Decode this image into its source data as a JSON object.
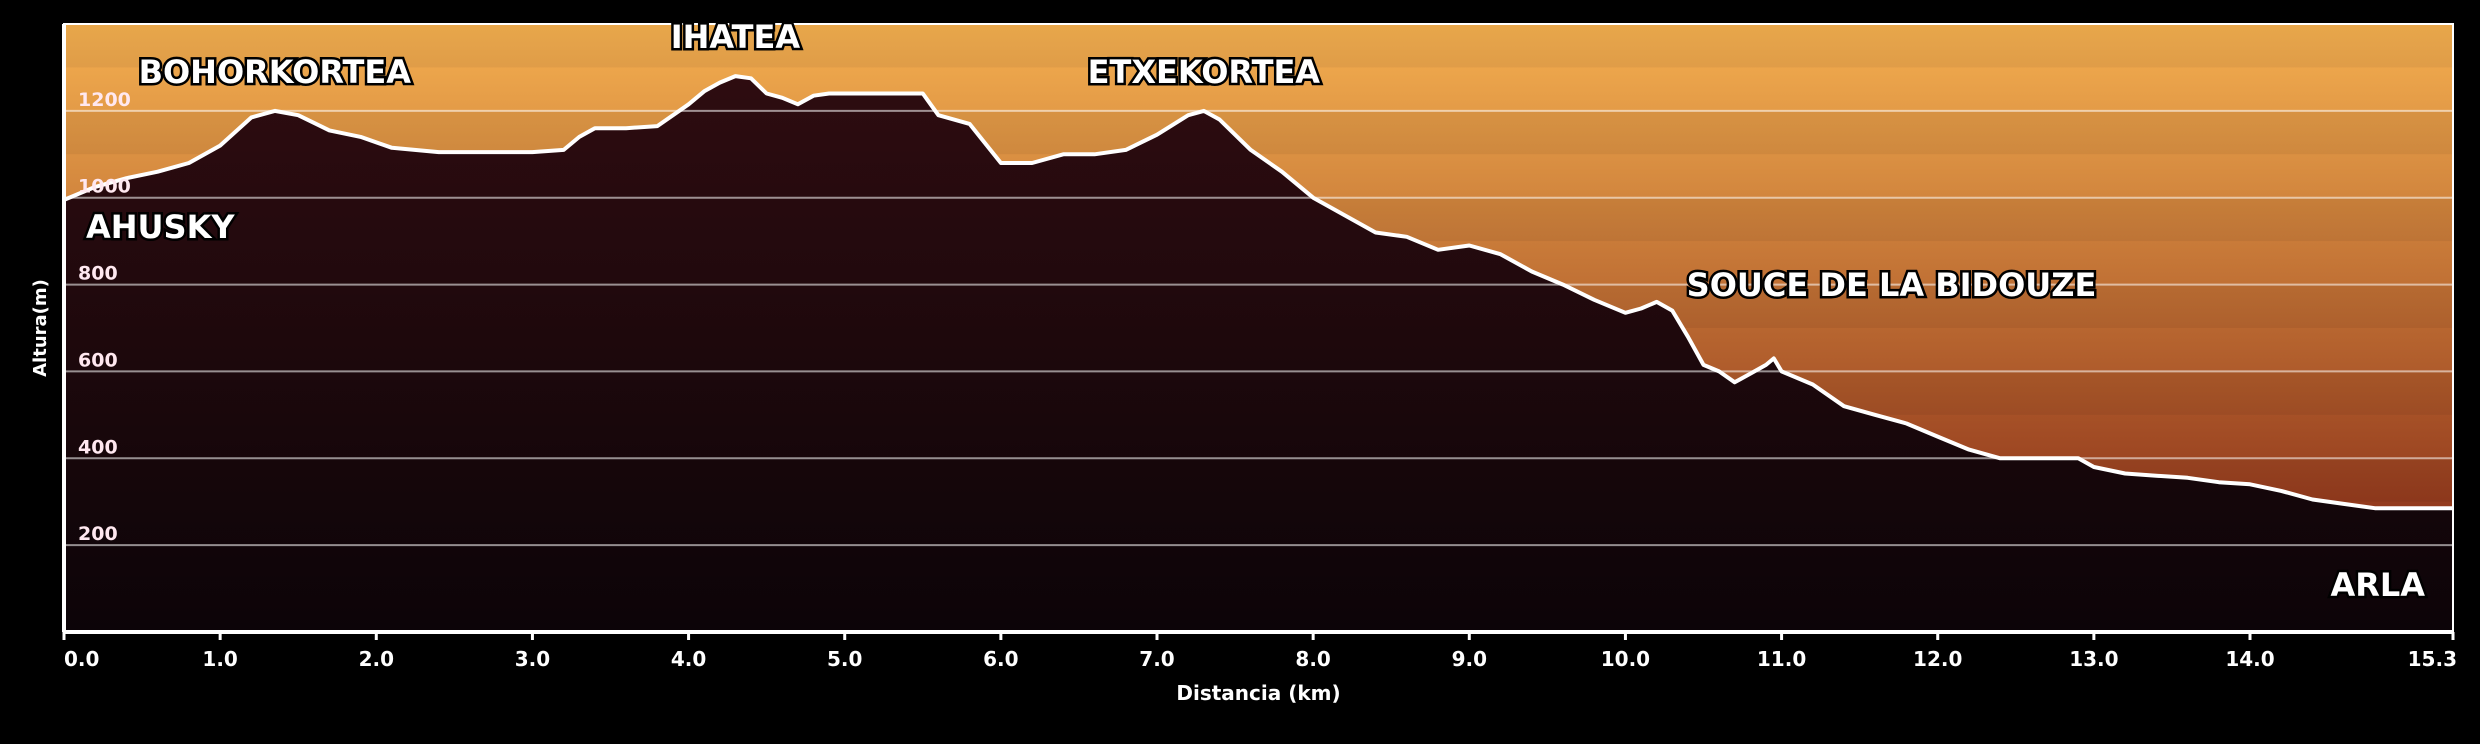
{
  "chart_data": {
    "type": "area",
    "title": "",
    "xlabel": "Distancia  (km)",
    "ylabel": "Altura(m)",
    "xlim": [
      0,
      15.3
    ],
    "ylim": [
      0,
      1400
    ],
    "grid": true,
    "x_ticks": [
      "0.0",
      "1.0",
      "2.0",
      "3.0",
      "4.0",
      "5.0",
      "6.0",
      "7.0",
      "8.0",
      "9.0",
      "10.0",
      "11.0",
      "12.0",
      "13.0",
      "14.0",
      "15.3"
    ],
    "x_tick_values": [
      0,
      1,
      2,
      3,
      4,
      5,
      6,
      7,
      8,
      9,
      10,
      11,
      12,
      13,
      14,
      15.3
    ],
    "y_ticks": [
      "200",
      "400",
      "600",
      "800",
      "1000",
      "1200"
    ],
    "y_tick_values": [
      200,
      400,
      600,
      800,
      1000,
      1200
    ],
    "colors": {
      "sky_top": "#f5b050",
      "sky_bottom": "#7a1c10",
      "ground_top": "#2e0c10",
      "ground_bottom": "#0c0408",
      "line": "#ffffff"
    },
    "series": [
      {
        "x": [
          0,
          0.2,
          0.4,
          0.6,
          0.8,
          1.0,
          1.2,
          1.35,
          1.5,
          1.7,
          1.9,
          2.1,
          2.4,
          2.7,
          3.0,
          3.2,
          3.3,
          3.4,
          3.6,
          3.8,
          4.0,
          4.1,
          4.2,
          4.3,
          4.4,
          4.5,
          4.6,
          4.7,
          4.8,
          4.9,
          5.0,
          5.2,
          5.4,
          5.5,
          5.6,
          5.8,
          6.0,
          6.2,
          6.4,
          6.6,
          6.8,
          7.0,
          7.2,
          7.3,
          7.4,
          7.6,
          7.8,
          8.0,
          8.2,
          8.4,
          8.6,
          8.8,
          9.0,
          9.2,
          9.4,
          9.6,
          9.8,
          10.0,
          10.1,
          10.2,
          10.3,
          10.4,
          10.5,
          10.6,
          10.7,
          10.8,
          10.9,
          10.95,
          11.0,
          11.2,
          11.4,
          11.6,
          11.8,
          12.0,
          12.2,
          12.4,
          12.6,
          12.8,
          12.9,
          13.0,
          13.2,
          13.4,
          13.6,
          13.8,
          14.0,
          14.2,
          14.4,
          14.6,
          14.8,
          15.0,
          15.3
        ],
        "y": [
          995,
          1025,
          1045,
          1060,
          1080,
          1120,
          1185,
          1200,
          1190,
          1155,
          1140,
          1115,
          1105,
          1105,
          1105,
          1110,
          1140,
          1160,
          1160,
          1165,
          1215,
          1245,
          1265,
          1280,
          1275,
          1240,
          1230,
          1215,
          1235,
          1240,
          1240,
          1240,
          1240,
          1240,
          1190,
          1170,
          1080,
          1080,
          1100,
          1100,
          1110,
          1145,
          1190,
          1200,
          1180,
          1110,
          1060,
          1000,
          960,
          920,
          910,
          880,
          890,
          870,
          830,
          800,
          765,
          735,
          745,
          760,
          740,
          680,
          615,
          600,
          575,
          595,
          615,
          630,
          600,
          570,
          520,
          500,
          480,
          450,
          420,
          400,
          400,
          400,
          400,
          380,
          365,
          360,
          355,
          345,
          340,
          325,
          305,
          295,
          285,
          285,
          285
        ]
      }
    ],
    "annotations": [
      {
        "text": "BOHORKORTEA",
        "x": 1.35,
        "y": 1200
      },
      {
        "text": "IHATEA",
        "x": 4.3,
        "y": 1280
      },
      {
        "text": "ETXEKORTEA",
        "x": 7.3,
        "y": 1200
      },
      {
        "text": "AHUSKY",
        "x": 0,
        "y": 995
      },
      {
        "text": "SOUCE DE LA BIDOUZE",
        "x": 10.2,
        "y": 760
      },
      {
        "text": "ARLA",
        "x": 15.3,
        "y": 285
      }
    ]
  }
}
